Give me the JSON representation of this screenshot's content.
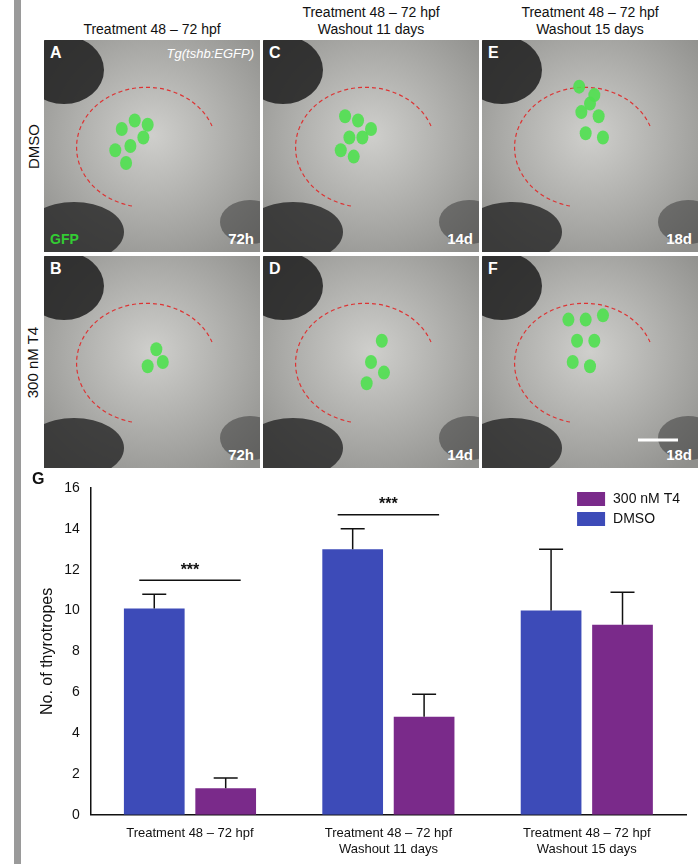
{
  "panels": {
    "columns": [
      [
        "Treatment 48 – 72 hpf"
      ],
      [
        "Treatment 48 – 72 hpf",
        "Washout 11 days"
      ],
      [
        "Treatment 48 – 72 hpf",
        "Washout 15 days"
      ]
    ],
    "rows": [
      "DMSO",
      "300 nM T4"
    ],
    "transgene": "Tg(tshb:EGFP)",
    "channel": "GFP",
    "images": [
      {
        "letter": "A",
        "time": "72h",
        "row": 0,
        "column": 0
      },
      {
        "letter": "B",
        "time": "72h",
        "row": 1,
        "column": 0
      },
      {
        "letter": "C",
        "time": "14d",
        "row": 0,
        "column": 1
      },
      {
        "letter": "D",
        "time": "14d",
        "row": 1,
        "column": 1
      },
      {
        "letter": "E",
        "time": "18d",
        "row": 0,
        "column": 2
      },
      {
        "letter": "F",
        "time": "18d",
        "row": 1,
        "column": 2
      }
    ]
  },
  "chart_data": {
    "type": "bar",
    "panel": "G",
    "categories": [
      [
        "Treatment 48 – 72 hpf"
      ],
      [
        "Treatment 48 – 72 hpf",
        "Washout 11 days"
      ],
      [
        "Treatment 48 – 72 hpf",
        "Washout 15 days"
      ]
    ],
    "series": [
      {
        "name": "DMSO",
        "color": "#3d4bb8",
        "values": [
          10.1,
          13.0,
          10.0
        ],
        "errors": [
          0.7,
          1.0,
          3.0
        ]
      },
      {
        "name": "300 nM T4",
        "color": "#7a2a8a",
        "values": [
          1.3,
          4.8,
          9.3
        ],
        "errors": [
          0.5,
          1.1,
          1.6
        ]
      }
    ],
    "y_label": "No. of thyrotropes",
    "ylim": [
      0,
      16
    ],
    "yticks": [
      0,
      2,
      4,
      6,
      8,
      10,
      12,
      14,
      16
    ],
    "grid": false,
    "legend": "upper right",
    "annotations": [
      {
        "text": "***",
        "category": 0
      },
      {
        "text": "***",
        "category": 1
      }
    ]
  }
}
